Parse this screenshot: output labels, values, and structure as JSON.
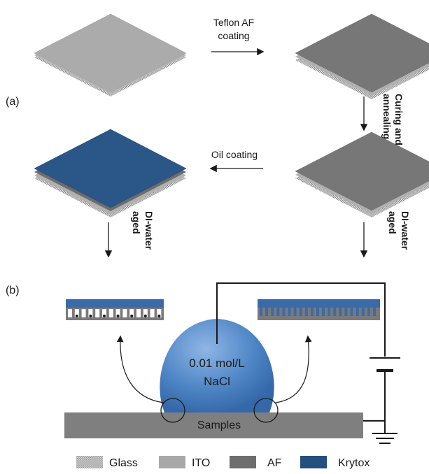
{
  "panel_a": {
    "label": "(a)",
    "steps": {
      "teflon_line1": "Teflon AF",
      "teflon_line2": "coating",
      "curing_line1": "Curing  and",
      "curing_line2": "annealing",
      "oil": "Oil coating",
      "di_line1": "DI-water",
      "di_line2": "aged"
    }
  },
  "panel_b": {
    "label": "(b)",
    "droplet_line1": "0.01 mol/L",
    "droplet_line2": "NaCl",
    "substrate_label": "Samples"
  },
  "legend": [
    {
      "name": "Glass",
      "color": "#b4b4b4"
    },
    {
      "name": "ITO",
      "color": "#a8a8a8"
    },
    {
      "name": "AF",
      "color": "#6e6e6e"
    },
    {
      "name": "Krytox",
      "color": "#24507f"
    }
  ],
  "colors": {
    "ito": "#a8a8a8",
    "af": "#777777",
    "krytox": "#2a5688",
    "droplet": "#4f86c6",
    "substrate": "#7f7f7f"
  }
}
